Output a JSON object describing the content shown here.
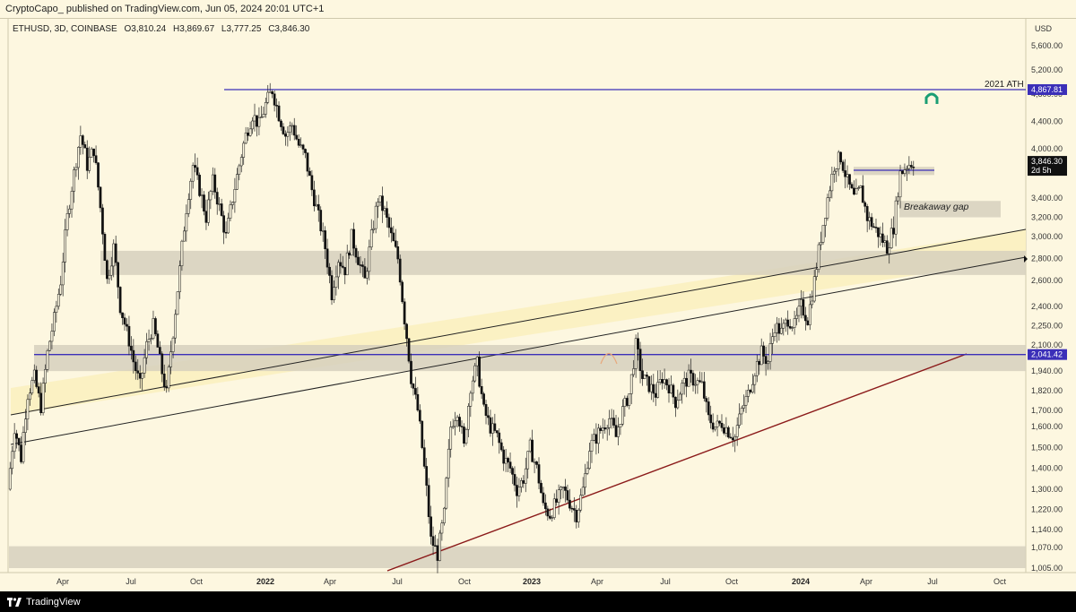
{
  "header": {
    "publish_line": "CryptoCapo_ published on TradingView.com, Jun 05, 2024 20:01 UTC+1"
  },
  "legend": {
    "symbol": "ETHUSD, 3D, COINBASE",
    "open": "O3,810.24",
    "high": "H3,869.67",
    "low": "L3,777.25",
    "close": "C3,846.30"
  },
  "footer": {
    "brand": "TradingView"
  },
  "colors": {
    "background": "#fdf7e0",
    "zone": "#d6d0bd",
    "horizontal_line": "#3b2fb8",
    "support_line": "#8b1a1a",
    "channel_fill": "#fbefc0",
    "price_badge": "#111111"
  },
  "chart_data": {
    "type": "candlestick",
    "currency_label": "USD",
    "price_ticks": [
      "5,600.00",
      "5,200.00",
      "4,800.00",
      "4,400.00",
      "4,000.00",
      "3,400.00",
      "3,200.00",
      "3,000.00",
      "2,800.00",
      "2,600.00",
      "2,400.00",
      "2,250.00",
      "2,100.00",
      "1,940.00",
      "1,820.00",
      "1,700.00",
      "1,600.00",
      "1,500.00",
      "1,400.00",
      "1,300.00",
      "1,220.00",
      "1,140.00",
      "1,070.00",
      "1,005.00"
    ],
    "time_labels": [
      {
        "label": "Apr",
        "bold": false
      },
      {
        "label": "Jul",
        "bold": false
      },
      {
        "label": "Oct",
        "bold": false
      },
      {
        "label": "2022",
        "bold": true
      },
      {
        "label": "Apr",
        "bold": false
      },
      {
        "label": "Jul",
        "bold": false
      },
      {
        "label": "Oct",
        "bold": false
      },
      {
        "label": "2023",
        "bold": true
      },
      {
        "label": "Apr",
        "bold": false
      },
      {
        "label": "Jul",
        "bold": false
      },
      {
        "label": "Oct",
        "bold": false
      },
      {
        "label": "2024",
        "bold": true
      },
      {
        "label": "Apr",
        "bold": false
      },
      {
        "label": "Jul",
        "bold": false
      },
      {
        "label": "Oct",
        "bold": false
      }
    ],
    "levels": [
      {
        "name": "2021 ATH",
        "price": 4867.81,
        "badge": "4,867.81"
      },
      {
        "name": "",
        "price": 2041.42,
        "badge": "2,041.42"
      }
    ],
    "current_price": {
      "value": "3,846.30",
      "countdown": "2d 5h"
    },
    "annotations": {
      "ath_label": "2021 ATH",
      "gap_label": "Breakaway gap"
    },
    "zones": [
      {
        "low": 2650,
        "high": 2870
      },
      {
        "low": 1940,
        "high": 2100
      },
      {
        "low": 1005,
        "high": 1075
      },
      {
        "low": 3200,
        "high": 3370
      },
      {
        "low": 3680,
        "high": 3780
      }
    ],
    "price_path": [
      [
        0,
        1300
      ],
      [
        2,
        1600
      ],
      [
        4,
        1450
      ],
      [
        6,
        1800
      ],
      [
        8,
        1900
      ],
      [
        10,
        1720
      ],
      [
        12,
        2050
      ],
      [
        14,
        2300
      ],
      [
        16,
        2600
      ],
      [
        18,
        3200
      ],
      [
        20,
        3700
      ],
      [
        21,
        4200
      ],
      [
        22,
        3800
      ],
      [
        23,
        4000
      ],
      [
        24,
        3300
      ],
      [
        25,
        2600
      ],
      [
        26,
        2900
      ],
      [
        27,
        2400
      ],
      [
        28,
        2200
      ],
      [
        29,
        2000
      ],
      [
        30,
        1850
      ],
      [
        31,
        2100
      ],
      [
        32,
        2250
      ],
      [
        33,
        2000
      ],
      [
        34,
        1800
      ],
      [
        35,
        2200
      ],
      [
        36,
        2700
      ],
      [
        37,
        3300
      ],
      [
        38,
        3800
      ],
      [
        39,
        3500
      ],
      [
        40,
        3200
      ],
      [
        41,
        3600
      ],
      [
        42,
        3300
      ],
      [
        43,
        3000
      ],
      [
        44,
        3400
      ],
      [
        45,
        3800
      ],
      [
        46,
        4200
      ],
      [
        47,
        4500
      ],
      [
        48,
        4350
      ],
      [
        49,
        4650
      ],
      [
        50,
        4867
      ],
      [
        51,
        4500
      ],
      [
        52,
        4200
      ],
      [
        53,
        4350
      ],
      [
        54,
        4050
      ],
      [
        55,
        3900
      ],
      [
        56,
        3500
      ],
      [
        57,
        3200
      ],
      [
        58,
        2900
      ],
      [
        59,
        2500
      ],
      [
        60,
        2800
      ],
      [
        61,
        2700
      ],
      [
        62,
        3000
      ],
      [
        63,
        2800
      ],
      [
        64,
        2600
      ],
      [
        65,
        3000
      ],
      [
        66,
        3400
      ],
      [
        67,
        3250
      ],
      [
        68,
        3000
      ],
      [
        69,
        2800
      ],
      [
        70,
        2300
      ],
      [
        71,
        1900
      ],
      [
        72,
        1700
      ],
      [
        73,
        1400
      ],
      [
        74,
        1100
      ],
      [
        75,
        1050
      ],
      [
        76,
        1200
      ],
      [
        77,
        1600
      ],
      [
        78,
        1700
      ],
      [
        79,
        1500
      ],
      [
        80,
        1850
      ],
      [
        81,
        1980
      ],
      [
        82,
        1700
      ],
      [
        83,
        1600
      ],
      [
        84,
        1550
      ],
      [
        85,
        1450
      ],
      [
        86,
        1400
      ],
      [
        87,
        1300
      ],
      [
        88,
        1350
      ],
      [
        89,
        1500
      ],
      [
        90,
        1400
      ],
      [
        91,
        1230
      ],
      [
        92,
        1200
      ],
      [
        93,
        1250
      ],
      [
        94,
        1300
      ],
      [
        95,
        1250
      ],
      [
        96,
        1200
      ],
      [
        97,
        1300
      ],
      [
        98,
        1500
      ],
      [
        99,
        1550
      ],
      [
        100,
        1600
      ],
      [
        101,
        1650
      ],
      [
        102,
        1550
      ],
      [
        103,
        1700
      ],
      [
        104,
        1800
      ],
      [
        105,
        2100
      ],
      [
        106,
        1900
      ],
      [
        107,
        1850
      ],
      [
        108,
        1800
      ],
      [
        109,
        1900
      ],
      [
        110,
        1850
      ],
      [
        111,
        1750
      ],
      [
        112,
        1850
      ],
      [
        113,
        1900
      ],
      [
        114,
        1880
      ],
      [
        115,
        1850
      ],
      [
        116,
        1650
      ],
      [
        117,
        1600
      ],
      [
        118,
        1620
      ],
      [
        119,
        1580
      ],
      [
        120,
        1550
      ],
      [
        121,
        1700
      ],
      [
        122,
        1800
      ],
      [
        123,
        1950
      ],
      [
        124,
        2050
      ],
      [
        125,
        2000
      ],
      [
        126,
        2250
      ],
      [
        127,
        2200
      ],
      [
        128,
        2300
      ],
      [
        129,
        2250
      ],
      [
        130,
        2400
      ],
      [
        131,
        2300
      ],
      [
        132,
        2600
      ],
      [
        133,
        3000
      ],
      [
        134,
        3400
      ],
      [
        135,
        3800
      ],
      [
        136,
        3900
      ],
      [
        137,
        3600
      ],
      [
        138,
        3400
      ],
      [
        139,
        3500
      ],
      [
        140,
        3200
      ],
      [
        141,
        3100
      ],
      [
        142,
        3000
      ],
      [
        143,
        2900
      ],
      [
        144,
        3100
      ],
      [
        145,
        3700
      ],
      [
        146,
        3800
      ],
      [
        147,
        3846
      ]
    ]
  }
}
